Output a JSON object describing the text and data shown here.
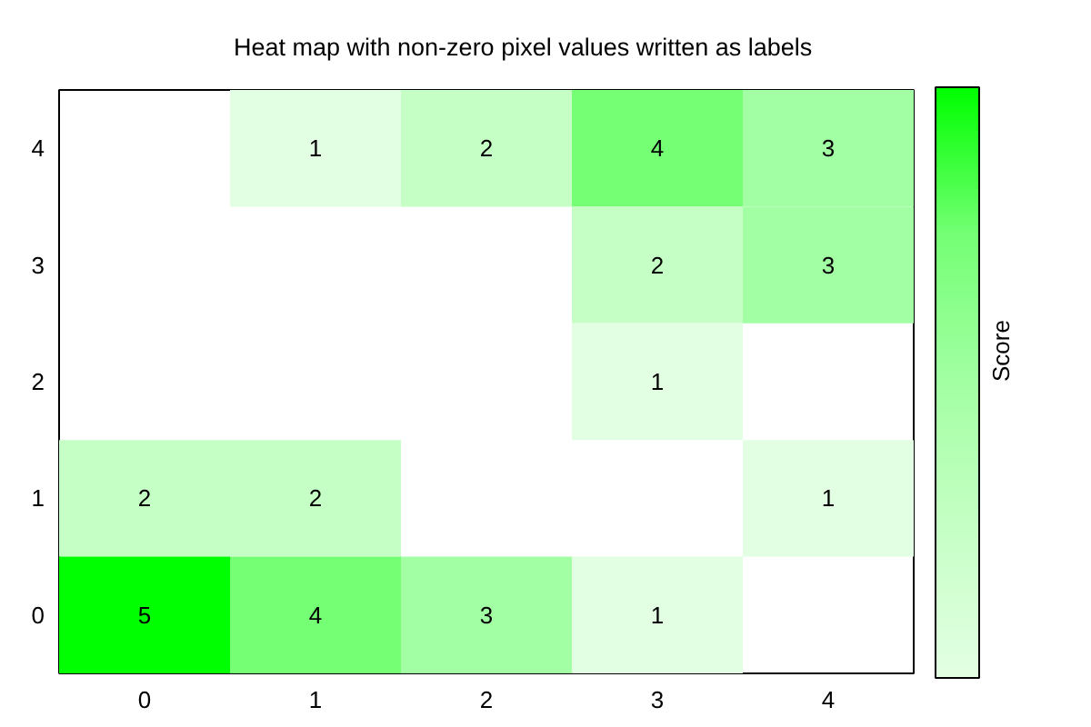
{
  "chart_data": {
    "type": "heatmap",
    "title": "Heat map with non-zero pixel values written as labels",
    "clabel": "Score",
    "categories": [
      "0",
      "1",
      "2",
      "3",
      "4"
    ],
    "y_categories": [
      "4",
      "3",
      "2",
      "1",
      "0"
    ],
    "cells": [
      [
        null,
        1,
        2,
        4,
        3
      ],
      [
        null,
        null,
        null,
        2,
        3
      ],
      [
        null,
        null,
        null,
        1,
        null
      ],
      [
        2,
        2,
        null,
        null,
        1
      ],
      [
        5,
        4,
        3,
        1,
        null
      ]
    ],
    "data_labels": true,
    "colors": [
      "#e3ffe3",
      "#c6ffc6",
      "#a3ffa3",
      "#75ff75",
      "#00ff00"
    ]
  }
}
